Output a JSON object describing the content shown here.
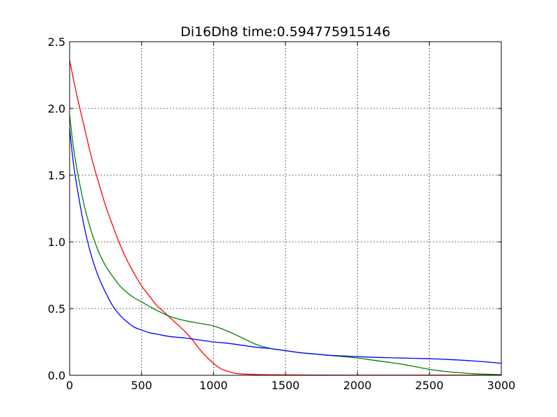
{
  "chart_data": {
    "type": "line",
    "title": "Di16Dh8  time:0.594775915146",
    "xlabel": "",
    "ylabel": "",
    "xlim": [
      0,
      3000
    ],
    "ylim": [
      0,
      2.5
    ],
    "grid": true,
    "legend": "none",
    "x_ticks": [
      0,
      500,
      1000,
      1500,
      2000,
      2500,
      3000
    ],
    "x_tick_labels": [
      "0",
      "500",
      "1000",
      "1500",
      "2000",
      "2500",
      "3000"
    ],
    "y_ticks": [
      0,
      0.5,
      1.0,
      1.5,
      2.0,
      2.5
    ],
    "y_tick_labels": [
      "0.0",
      "0.5",
      "1.0",
      "1.5",
      "2.0",
      "2.5"
    ],
    "series": [
      {
        "color": "#ff0000",
        "x": [
          0,
          50,
          100,
          150,
          200,
          250,
          300,
          350,
          400,
          450,
          500,
          550,
          600,
          650,
          700,
          750,
          800,
          850,
          900,
          950,
          1000,
          1050,
          1100,
          1150,
          1200,
          1300,
          1400,
          1500,
          1700,
          2000,
          2500,
          3000
        ],
        "y": [
          2.36,
          2.1,
          1.87,
          1.64,
          1.45,
          1.27,
          1.12,
          0.98,
          0.86,
          0.76,
          0.67,
          0.6,
          0.53,
          0.48,
          0.43,
          0.38,
          0.33,
          0.27,
          0.2,
          0.14,
          0.09,
          0.05,
          0.03,
          0.015,
          0.01,
          0.006,
          0.004,
          0.003,
          0.002,
          0.001,
          0.001,
          0.001
        ]
      },
      {
        "color": "#008000",
        "x": [
          0,
          25,
          50,
          100,
          150,
          200,
          250,
          300,
          350,
          400,
          450,
          500,
          600,
          700,
          800,
          900,
          1000,
          1100,
          1200,
          1300,
          1400,
          1500,
          1600,
          1700,
          1800,
          1900,
          2000,
          2100,
          2200,
          2300,
          2400,
          2500,
          2600,
          2700,
          2800,
          2900,
          3000
        ],
        "y": [
          1.95,
          1.72,
          1.55,
          1.28,
          1.08,
          0.93,
          0.82,
          0.74,
          0.67,
          0.62,
          0.58,
          0.55,
          0.49,
          0.44,
          0.41,
          0.39,
          0.37,
          0.33,
          0.28,
          0.23,
          0.2,
          0.185,
          0.17,
          0.16,
          0.15,
          0.14,
          0.13,
          0.115,
          0.1,
          0.085,
          0.065,
          0.045,
          0.03,
          0.02,
          0.012,
          0.008,
          0.005
        ]
      },
      {
        "color": "#0000ff",
        "x": [
          0,
          25,
          50,
          100,
          150,
          200,
          250,
          300,
          350,
          400,
          450,
          500,
          550,
          600,
          700,
          800,
          900,
          1000,
          1100,
          1200,
          1300,
          1400,
          1500,
          1600,
          1700,
          1800,
          1900,
          2000,
          2100,
          2200,
          2300,
          2400,
          2500,
          2600,
          2700,
          2800,
          2900,
          3000
        ],
        "y": [
          1.85,
          1.6,
          1.42,
          1.12,
          0.9,
          0.74,
          0.62,
          0.52,
          0.45,
          0.4,
          0.36,
          0.34,
          0.32,
          0.31,
          0.29,
          0.28,
          0.265,
          0.25,
          0.24,
          0.225,
          0.21,
          0.2,
          0.185,
          0.17,
          0.16,
          0.15,
          0.145,
          0.14,
          0.135,
          0.132,
          0.13,
          0.127,
          0.124,
          0.12,
          0.115,
          0.108,
          0.1,
          0.09
        ]
      }
    ]
  }
}
